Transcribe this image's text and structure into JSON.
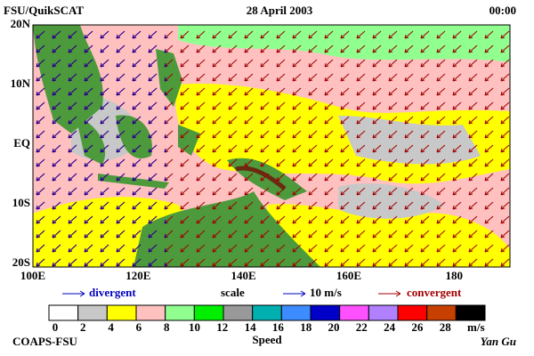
{
  "header": {
    "source": "FSU/QuikSCAT",
    "date": "28 April 2003",
    "time": "00:00"
  },
  "map": {
    "lon_labels": [
      "100E",
      "120E",
      "140E",
      "160E",
      "180"
    ],
    "lat_labels": [
      "20N",
      "10N",
      "EQ",
      "10S",
      "20S"
    ]
  },
  "legend": {
    "divergent": "divergent",
    "scale": "scale",
    "scale_value": "10 m/s",
    "convergent": "convergent"
  },
  "colorbar": {
    "ticks": [
      0,
      2,
      4,
      6,
      8,
      10,
      12,
      14,
      16,
      18,
      20,
      22,
      24,
      26,
      28
    ],
    "colors": [
      "#ffffff",
      "#c8c8c8",
      "#ffff00",
      "#ffc0c0",
      "#90ff90",
      "#00ee00",
      "#999999",
      "#00b0b0",
      "#3c8cff",
      "#0000c8",
      "#ff50ff",
      "#b080ff",
      "#ff0000",
      "#c84000",
      "#000000"
    ],
    "unit": "m/s",
    "label": "Speed"
  },
  "footer": {
    "institution": "COAPS-FSU",
    "author": "Yan Gu"
  }
}
